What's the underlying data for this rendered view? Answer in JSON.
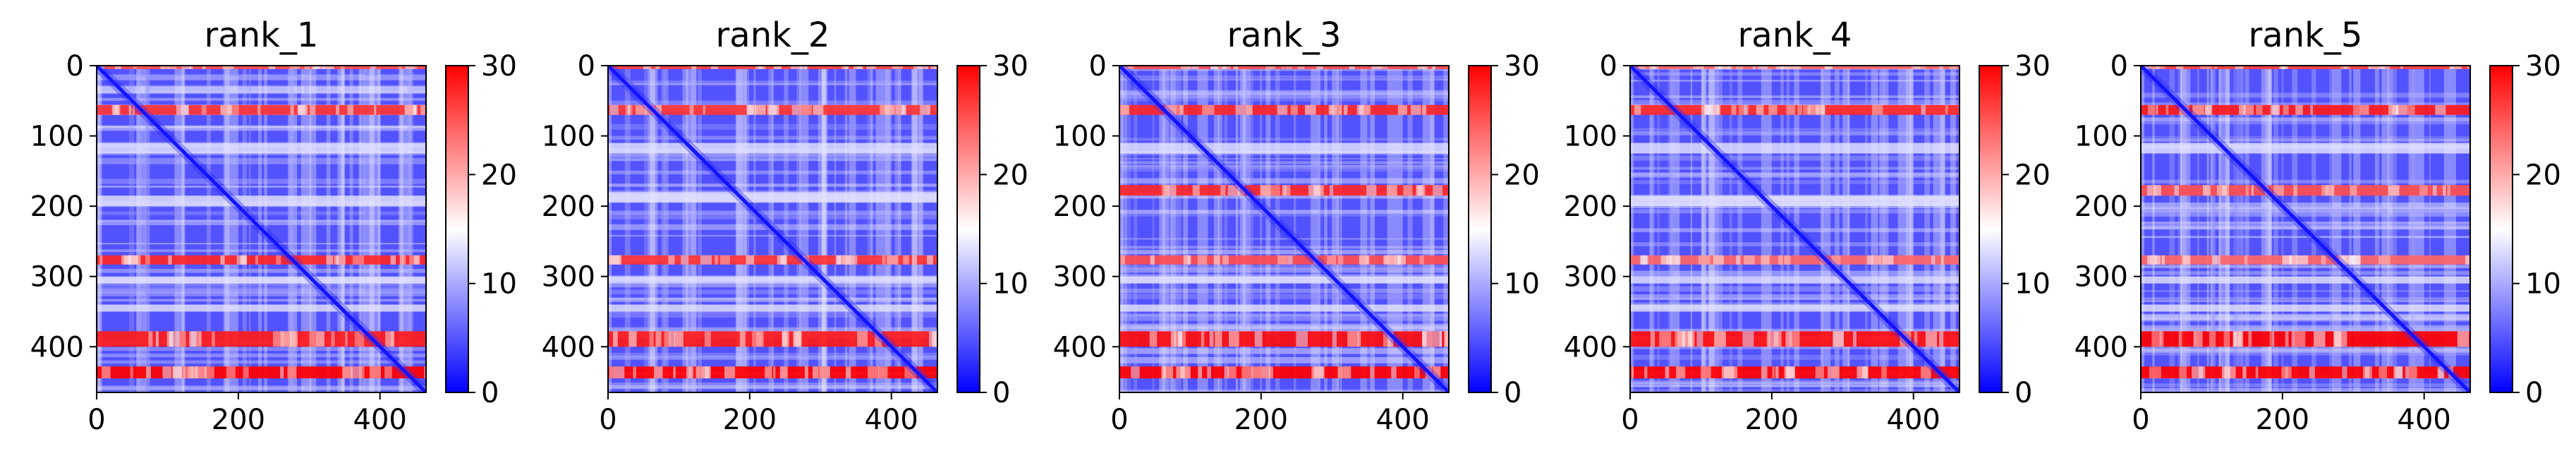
{
  "chart_data": [
    {
      "type": "heatmap",
      "title": "rank_1",
      "xlabel": "",
      "ylabel": "",
      "xlim": [
        0,
        465
      ],
      "ylim": [
        465,
        0
      ],
      "x_ticks": [
        0,
        200,
        400
      ],
      "y_ticks": [
        0,
        100,
        200,
        300,
        400
      ],
      "colormap": "bwr",
      "colorbar": {
        "min": 0,
        "max": 30,
        "ticks": [
          0,
          10,
          20,
          30
        ]
      },
      "diagonal": true,
      "high_value_bands": [
        {
          "y": [
            0,
            5
          ],
          "intensity": 0.7
        },
        {
          "y": [
            56,
            70
          ],
          "intensity": 0.8
        },
        {
          "y": [
            270,
            283
          ],
          "intensity": 0.85
        },
        {
          "y": [
            378,
            400
          ],
          "intensity": 0.9
        },
        {
          "y": [
            428,
            445
          ],
          "intensity": 1.0
        }
      ],
      "light_bands": [
        {
          "y": [
            110,
            125
          ]
        },
        {
          "y": [
            185,
            200
          ]
        },
        {
          "y": [
            300,
            310
          ]
        },
        {
          "y": [
            340,
            350
          ]
        }
      ]
    },
    {
      "type": "heatmap",
      "title": "rank_2",
      "xlabel": "",
      "ylabel": "",
      "xlim": [
        0,
        465
      ],
      "ylim": [
        465,
        0
      ],
      "x_ticks": [
        0,
        200,
        400
      ],
      "y_ticks": [
        0,
        100,
        200,
        300,
        400
      ],
      "colormap": "bwr",
      "colorbar": {
        "min": 0,
        "max": 30,
        "ticks": [
          0,
          10,
          20,
          30
        ]
      },
      "diagonal": true,
      "high_value_bands": [
        {
          "y": [
            0,
            5
          ],
          "intensity": 0.75
        },
        {
          "y": [
            56,
            70
          ],
          "intensity": 0.8
        },
        {
          "y": [
            270,
            283
          ],
          "intensity": 0.8
        },
        {
          "y": [
            378,
            400
          ],
          "intensity": 0.9
        },
        {
          "y": [
            428,
            445
          ],
          "intensity": 1.0
        }
      ],
      "light_bands": [
        {
          "y": [
            110,
            125
          ]
        },
        {
          "y": [
            180,
            195
          ]
        },
        {
          "y": [
            300,
            310
          ]
        },
        {
          "y": [
            340,
            350
          ]
        }
      ]
    },
    {
      "type": "heatmap",
      "title": "rank_3",
      "xlabel": "",
      "ylabel": "",
      "xlim": [
        0,
        465
      ],
      "ylim": [
        465,
        0
      ],
      "x_ticks": [
        0,
        200,
        400
      ],
      "y_ticks": [
        0,
        100,
        200,
        300,
        400
      ],
      "colormap": "bwr",
      "colorbar": {
        "min": 0,
        "max": 30,
        "ticks": [
          0,
          10,
          20,
          30
        ]
      },
      "diagonal": true,
      "high_value_bands": [
        {
          "y": [
            0,
            5
          ],
          "intensity": 0.7
        },
        {
          "y": [
            56,
            70
          ],
          "intensity": 0.85
        },
        {
          "y": [
            170,
            185
          ],
          "intensity": 0.85
        },
        {
          "y": [
            270,
            283
          ],
          "intensity": 0.7
        },
        {
          "y": [
            378,
            400
          ],
          "intensity": 0.95
        },
        {
          "y": [
            428,
            445
          ],
          "intensity": 1.0
        }
      ],
      "light_bands": [
        {
          "y": [
            110,
            125
          ]
        },
        {
          "y": [
            300,
            310
          ]
        },
        {
          "y": [
            340,
            350
          ]
        }
      ]
    },
    {
      "type": "heatmap",
      "title": "rank_4",
      "xlabel": "",
      "ylabel": "",
      "xlim": [
        0,
        465
      ],
      "ylim": [
        465,
        0
      ],
      "x_ticks": [
        0,
        200,
        400
      ],
      "y_ticks": [
        0,
        100,
        200,
        300,
        400
      ],
      "colormap": "bwr",
      "colorbar": {
        "min": 0,
        "max": 30,
        "ticks": [
          0,
          10,
          20,
          30
        ]
      },
      "diagonal": true,
      "high_value_bands": [
        {
          "y": [
            0,
            5
          ],
          "intensity": 0.6
        },
        {
          "y": [
            56,
            70
          ],
          "intensity": 0.85
        },
        {
          "y": [
            270,
            283
          ],
          "intensity": 0.6
        },
        {
          "y": [
            378,
            400
          ],
          "intensity": 0.95
        },
        {
          "y": [
            428,
            445
          ],
          "intensity": 1.0
        }
      ],
      "light_bands": [
        {
          "y": [
            110,
            125
          ]
        },
        {
          "y": [
            185,
            200
          ]
        },
        {
          "y": [
            300,
            310
          ]
        },
        {
          "y": [
            340,
            350
          ]
        }
      ]
    },
    {
      "type": "heatmap",
      "title": "rank_5",
      "xlabel": "",
      "ylabel": "",
      "xlim": [
        0,
        465
      ],
      "ylim": [
        465,
        0
      ],
      "x_ticks": [
        0,
        200,
        400
      ],
      "y_ticks": [
        0,
        100,
        200,
        300,
        400
      ],
      "colormap": "bwr",
      "colorbar": {
        "min": 0,
        "max": 30,
        "ticks": [
          0,
          10,
          20,
          30
        ]
      },
      "diagonal": true,
      "high_value_bands": [
        {
          "y": [
            0,
            5
          ],
          "intensity": 0.75
        },
        {
          "y": [
            56,
            70
          ],
          "intensity": 0.9
        },
        {
          "y": [
            170,
            185
          ],
          "intensity": 0.7
        },
        {
          "y": [
            270,
            283
          ],
          "intensity": 0.6
        },
        {
          "y": [
            378,
            400
          ],
          "intensity": 1.0
        },
        {
          "y": [
            428,
            445
          ],
          "intensity": 1.0
        }
      ],
      "light_bands": [
        {
          "y": [
            110,
            125
          ]
        },
        {
          "y": [
            300,
            310
          ]
        },
        {
          "y": [
            340,
            350
          ]
        }
      ]
    }
  ]
}
